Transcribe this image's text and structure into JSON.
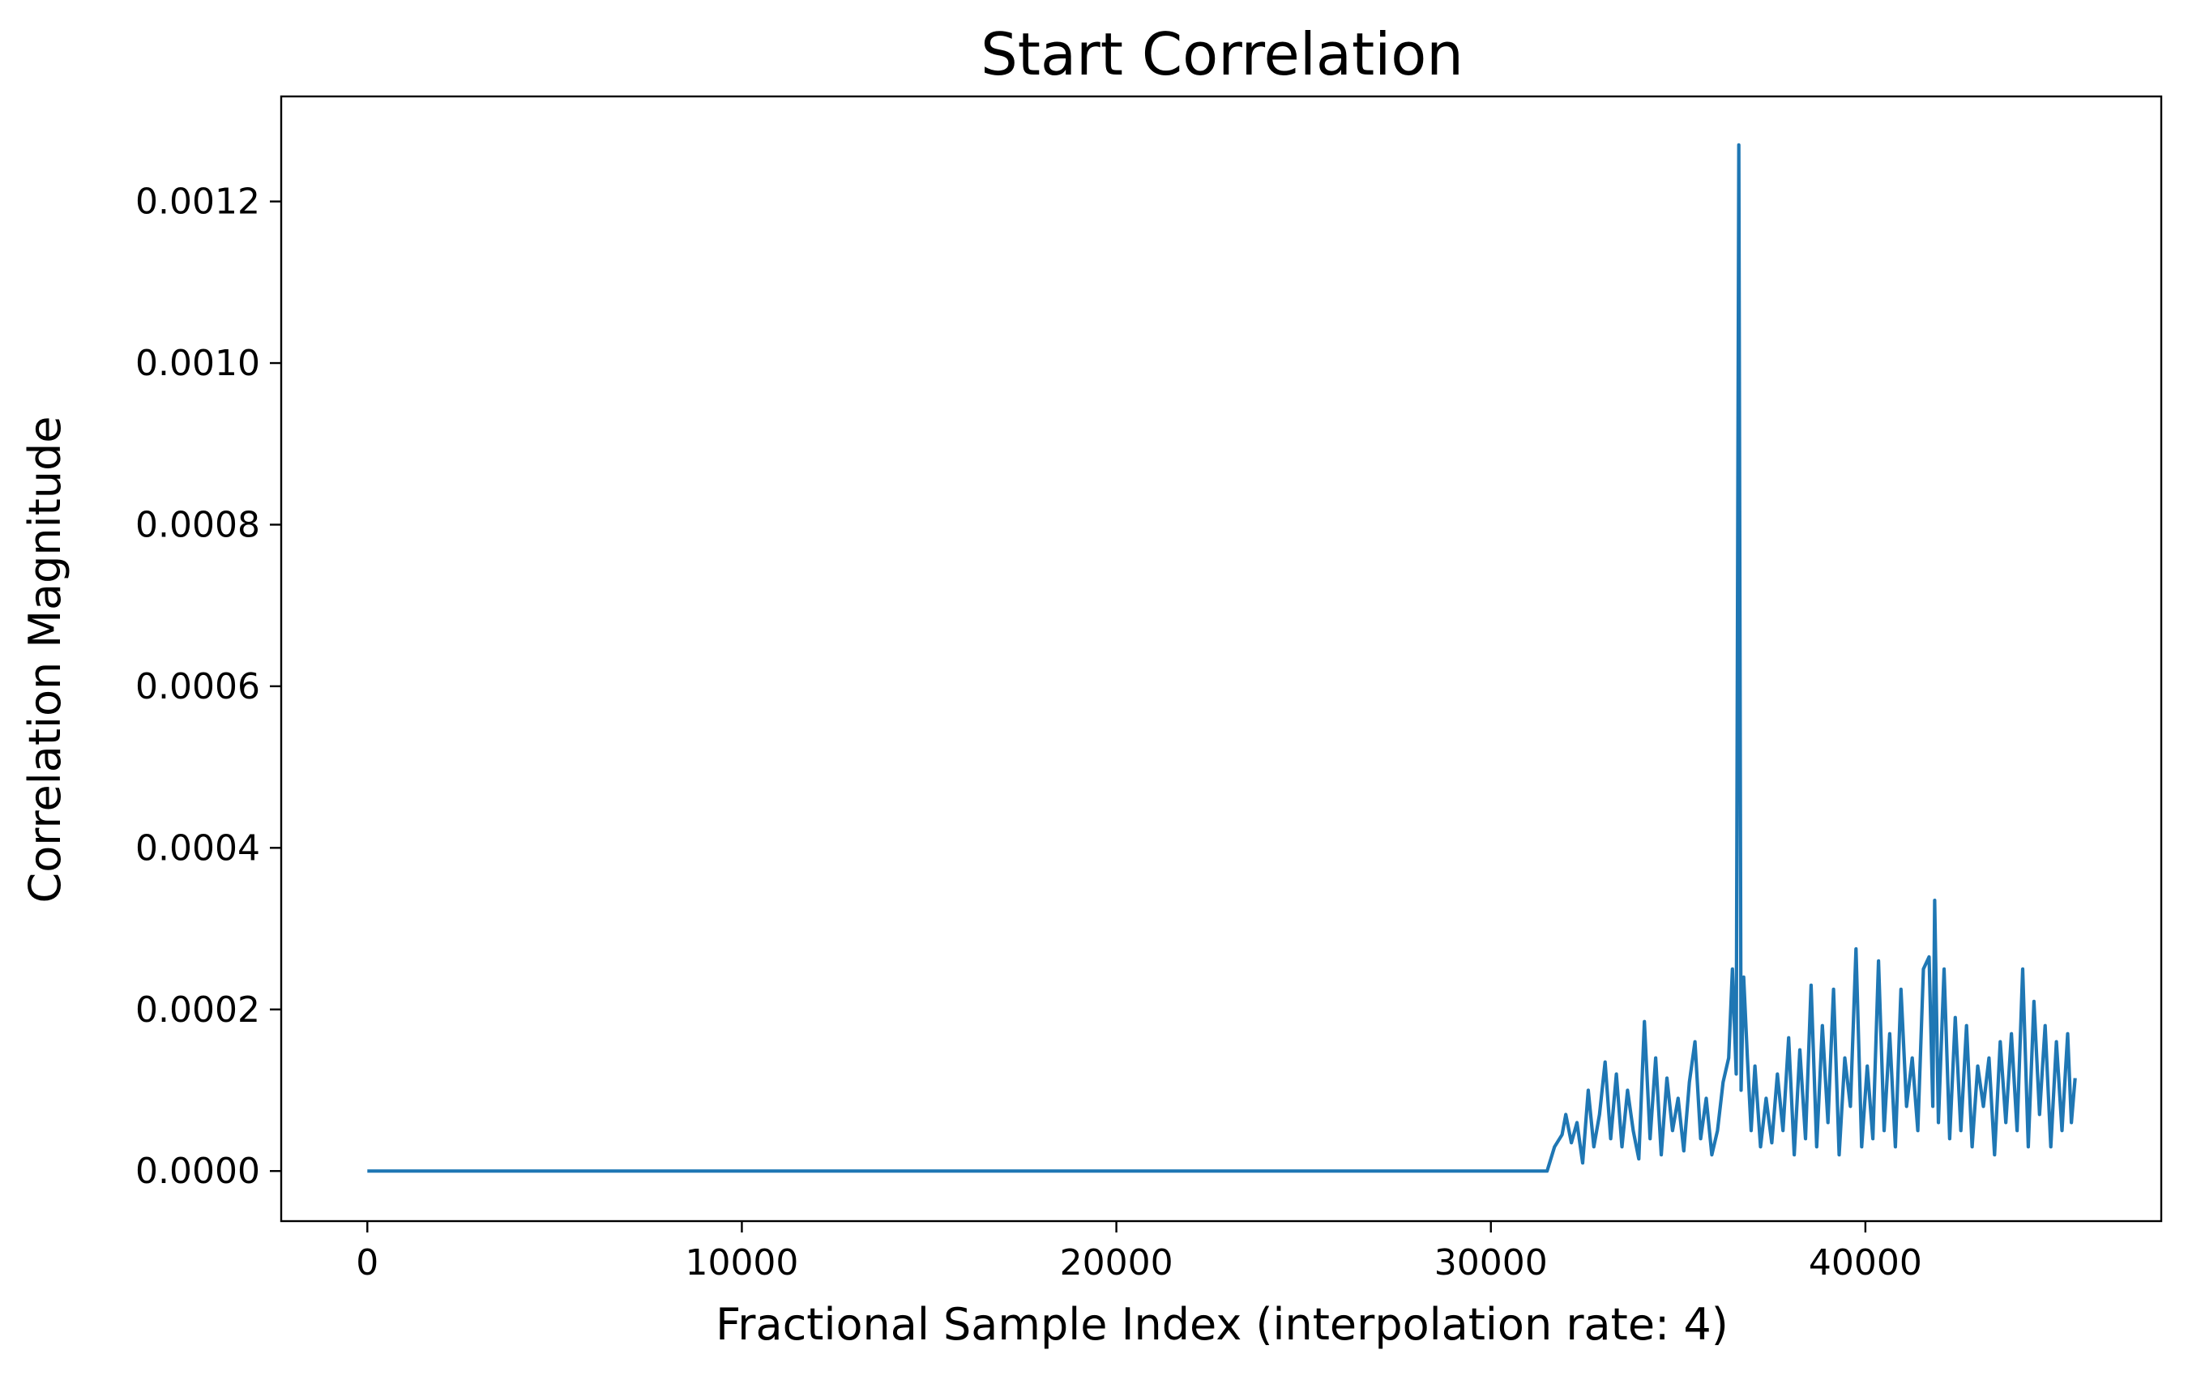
{
  "chart_data": {
    "type": "line",
    "title": "Start Correlation",
    "xlabel": "Fractional Sample Index (interpolation rate: 4)",
    "ylabel": "Correlation Magnitude",
    "xlim": [
      -2300,
      47900
    ],
    "ylim": [
      -6.2e-05,
      0.00133
    ],
    "xticks": [
      0,
      10000,
      20000,
      30000,
      40000
    ],
    "yticks": [
      0.0,
      0.0002,
      0.0004,
      0.0006,
      0.0008,
      0.001,
      0.0012
    ],
    "ytick_labels": [
      "0.0000",
      "0.0002",
      "0.0004",
      "0.0006",
      "0.0008",
      "0.0010",
      "0.0012"
    ],
    "grid": false,
    "legend": "none",
    "series": [
      {
        "color": "#1f77b4",
        "x": [
          0,
          31500,
          31700,
          31900,
          32000,
          32150,
          32300,
          32450,
          32600,
          32750,
          32900,
          33050,
          33200,
          33350,
          33500,
          33650,
          33800,
          33950,
          34100,
          34250,
          34400,
          34550,
          34700,
          34850,
          35000,
          35150,
          35300,
          35450,
          35600,
          35750,
          35900,
          36050,
          36200,
          36350,
          36450,
          36550,
          36620,
          36680,
          36750,
          36850,
          36950,
          37050,
          37200,
          37350,
          37500,
          37650,
          37800,
          37950,
          38100,
          38250,
          38400,
          38550,
          38700,
          38850,
          39000,
          39150,
          39300,
          39450,
          39600,
          39750,
          39900,
          40050,
          40200,
          40350,
          40500,
          40650,
          40800,
          40950,
          41100,
          41250,
          41400,
          41550,
          41700,
          41800,
          41850,
          41950,
          42100,
          42250,
          42400,
          42550,
          42700,
          42850,
          43000,
          43150,
          43300,
          43450,
          43600,
          43750,
          43900,
          44050,
          44200,
          44350,
          44500,
          44650,
          44800,
          44950,
          45100,
          45250,
          45400,
          45500,
          45600
        ],
        "y": [
          0,
          0,
          3e-05,
          4.5e-05,
          7e-05,
          3.5e-05,
          6e-05,
          1e-05,
          0.0001,
          3e-05,
          7e-05,
          0.000135,
          4e-05,
          0.00012,
          3e-05,
          0.0001,
          5e-05,
          1.5e-05,
          0.000185,
          4e-05,
          0.00014,
          2e-05,
          0.000115,
          5e-05,
          9e-05,
          2.5e-05,
          0.00011,
          0.00016,
          4e-05,
          9e-05,
          2e-05,
          5e-05,
          0.00011,
          0.00014,
          0.00025,
          0.00012,
          0.00127,
          0.0001,
          0.00024,
          0.00014,
          5e-05,
          0.00013,
          3e-05,
          9e-05,
          3.5e-05,
          0.00012,
          5e-05,
          0.000165,
          2e-05,
          0.00015,
          4e-05,
          0.00023,
          3e-05,
          0.00018,
          6e-05,
          0.000225,
          2e-05,
          0.00014,
          8e-05,
          0.000275,
          3e-05,
          0.00013,
          4e-05,
          0.00026,
          5e-05,
          0.00017,
          3e-05,
          0.000225,
          8e-05,
          0.00014,
          5e-05,
          0.00025,
          0.000265,
          8e-05,
          0.000335,
          6e-05,
          0.00025,
          4e-05,
          0.00019,
          5e-05,
          0.00018,
          3e-05,
          0.00013,
          8e-05,
          0.00014,
          2e-05,
          0.00016,
          6e-05,
          0.00017,
          5e-05,
          0.00025,
          3e-05,
          0.00021,
          7e-05,
          0.00018,
          3e-05,
          0.00016,
          5e-05,
          0.00017,
          6e-05,
          0.000115
        ]
      }
    ]
  }
}
